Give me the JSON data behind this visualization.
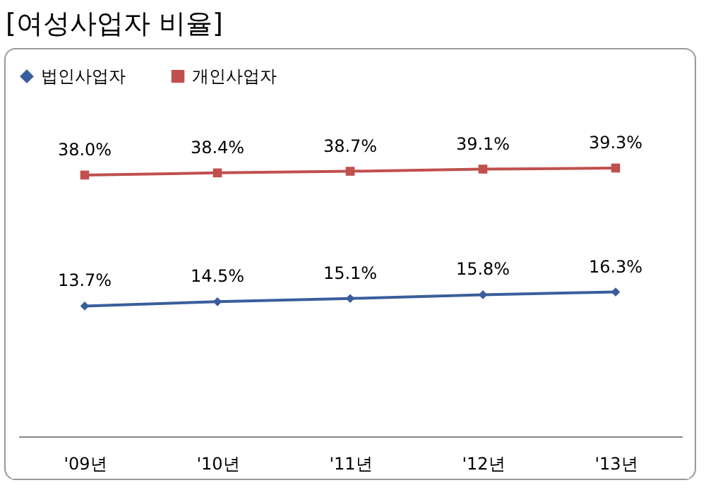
{
  "chart_data": {
    "type": "line",
    "title": "[여성사업자 비율]",
    "categories": [
      "'09년",
      "'10년",
      "'11년",
      "'12년",
      "'13년"
    ],
    "series": [
      {
        "name": "법인사업자",
        "color": "#3a5e9c",
        "marker": "diamond",
        "values": [
          13.7,
          14.5,
          15.1,
          15.8,
          16.3
        ],
        "value_labels": [
          "13.7%",
          "14.5%",
          "15.1%",
          "15.8%",
          "16.3%"
        ]
      },
      {
        "name": "개인사업자",
        "color": "#c0504d",
        "marker": "square",
        "values": [
          38.0,
          38.4,
          38.7,
          39.1,
          39.3
        ],
        "value_labels": [
          "38.0%",
          "38.4%",
          "38.7%",
          "39.1%",
          "39.3%"
        ]
      }
    ],
    "legend": "top left",
    "grid": false,
    "line_style": "solid"
  }
}
